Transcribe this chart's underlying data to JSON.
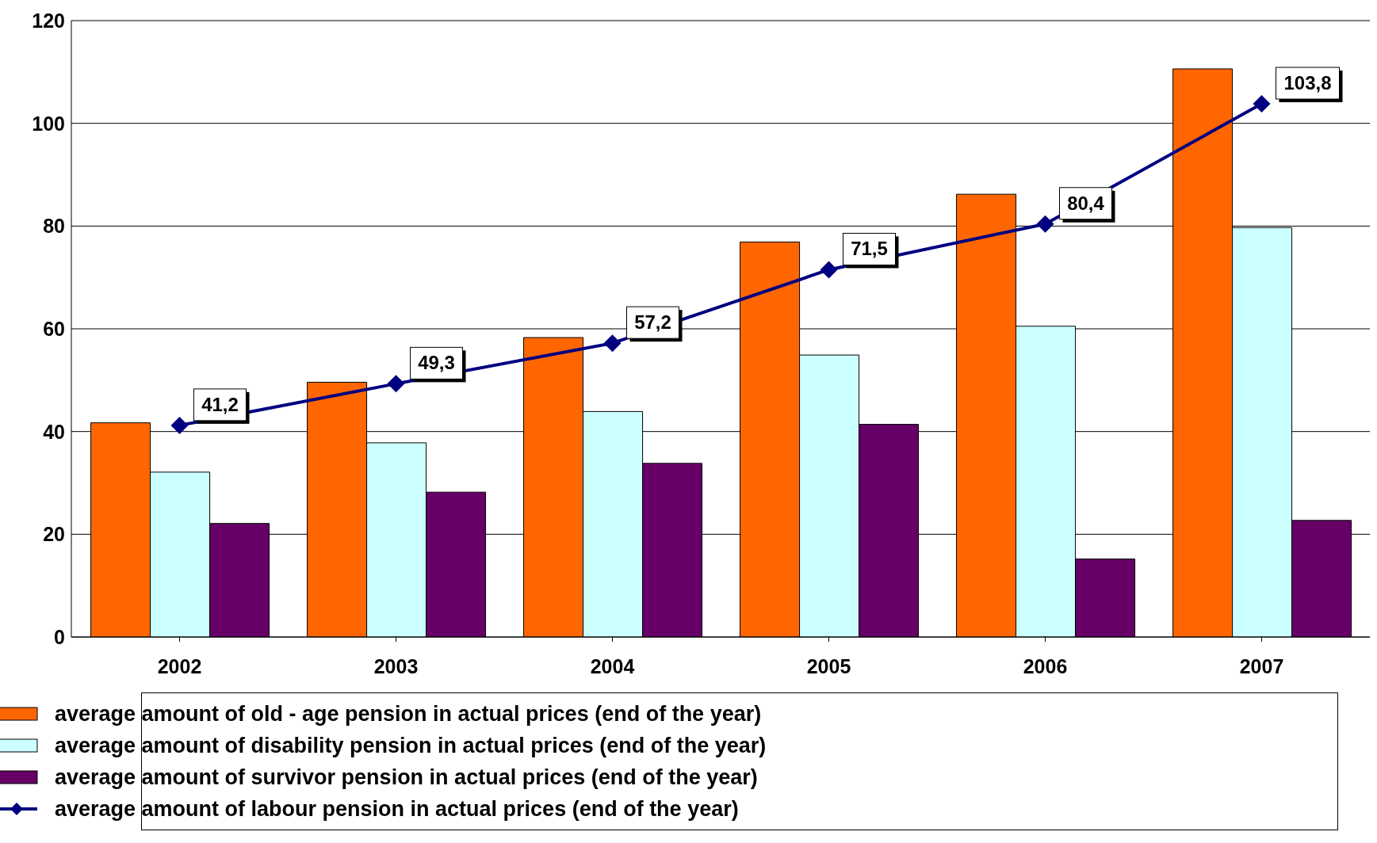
{
  "chart_data": {
    "type": "bar",
    "categories": [
      "2002",
      "2003",
      "2004",
      "2005",
      "2006",
      "2007"
    ],
    "series": [
      {
        "name": "average amount of old - age pension in actual prices (end of the year)",
        "color": "#ff6600",
        "values": [
          41.7,
          49.6,
          58.3,
          76.9,
          86.2,
          110.6
        ]
      },
      {
        "name": "average amount of disability pension in actual prices (end of the year)",
        "color": "#ccffff",
        "values": [
          32.1,
          37.8,
          43.9,
          54.9,
          60.5,
          79.7
        ]
      },
      {
        "name": "average amount of survivor pension in actual prices (end of the year)",
        "color": "#660066",
        "values": [
          22.1,
          28.2,
          33.8,
          41.4,
          15.2,
          22.7
        ]
      },
      {
        "name": "average amount of labour pension in actual prices (end of the year)",
        "type": "line",
        "color": "#000080",
        "marker": "diamond",
        "values": [
          41.2,
          49.3,
          57.2,
          71.5,
          80.4,
          103.8
        ],
        "value_labels": [
          "41,2",
          "49,3",
          "57,2",
          "71,5",
          "80,4",
          "103,8"
        ]
      }
    ],
    "ylim": [
      0,
      120
    ],
    "yticks": [
      0,
      20,
      40,
      60,
      80,
      100,
      120
    ],
    "grid": "y",
    "legend": "bottom"
  }
}
